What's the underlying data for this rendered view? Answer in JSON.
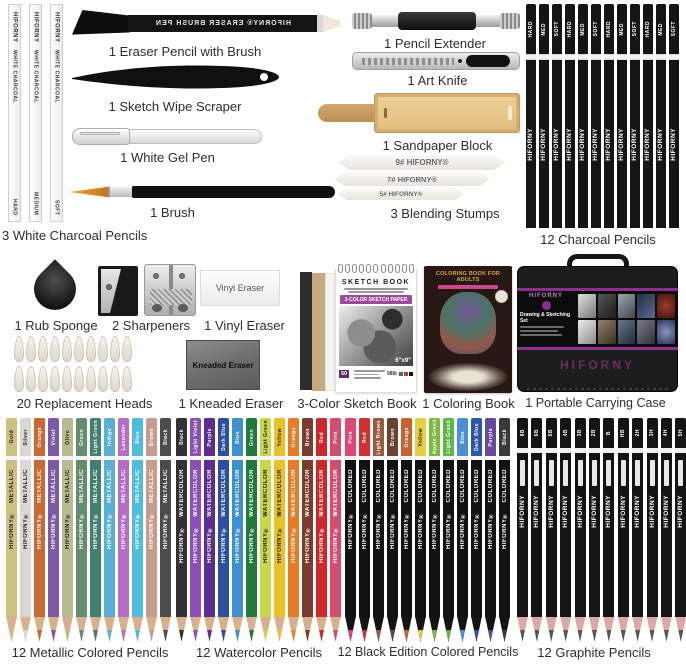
{
  "brand": "HIFORNY",
  "colors": {
    "accent_purple": "#8b2f8b",
    "banner_purple": "#9b4a9b",
    "wood": "#d8b08c",
    "graphite_wood": "#dba9a0",
    "graphite_lead": "#555555"
  },
  "labels": {
    "eraser_pencil": "1 Eraser Pencil with Brush",
    "scraper": "1 Sketch Wipe Scraper",
    "gel_pen": "1 White Gel Pen",
    "brush": "1 Brush",
    "white_charcoal": "3 White Charcoal Pencils",
    "pencil_extender": "1 Pencil Extender",
    "art_knife": "1 Art Knife",
    "sandpaper_block": "1 Sandpaper Block",
    "blending_stumps": "3 Blending Stumps",
    "charcoal": "12 Charcoal Pencils",
    "rub_sponge": "1 Rub Sponge",
    "sharpeners": "2 Sharpeners",
    "vinyl_eraser": "1 Vinyl Eraser",
    "replacement_heads": "20 Replacement Heads",
    "kneaded_eraser": "1 Kneaded Eraser",
    "sketch_book": "3-Color Sketch Book",
    "coloring_book": "1 Coloring Book",
    "carrying_case": "1 Portable Carrying Case",
    "metallic": "12 Metallic Colored Pencils",
    "watercolor": "12 Watercolor Pencils",
    "black_edition": "12 Black Edition Colored Pencils",
    "graphite": "12 Graphite Pencils"
  },
  "prints": {
    "eraser_pencil": "HIFORNY®  ERASER BRUSH PEN",
    "vinyl_eraser": "Vinyl Eraser",
    "kneaded_eraser": "Kneaded Eraser",
    "stumps": [
      "9# HIFORNY®",
      "7# HIFORNY®",
      "5# HIFORNY®"
    ]
  },
  "sketch_book": {
    "title": "SKETCH BOOK",
    "banner": "3-COLOR SKETCH PAPER",
    "size": "6\"x9\"",
    "sheets": "50",
    "weight": "98lb"
  },
  "coloring_book": {
    "title": "COLORING BOOK FOR ADULTS"
  },
  "carrying_case": {
    "brand_top": "HIFORNY",
    "panel_title": "Drawing & Sketching Set",
    "brand_bottom": "HIFORNY"
  },
  "replacement_heads_count": 20,
  "pencil_groups": [
    {
      "id": "white_charcoal",
      "style": "white",
      "brand_print": "HIFORNY",
      "word_print": "WHITE CHARCOAL",
      "pencils": [
        {
          "name": "HARD"
        },
        {
          "name": "MEDIUM"
        },
        {
          "name": "SOFT"
        }
      ]
    },
    {
      "id": "charcoal",
      "style": "charcoal",
      "brand_print": "HIFORNY",
      "pencils": [
        {
          "name": "HARD"
        },
        {
          "name": "MED"
        },
        {
          "name": "SOFT"
        },
        {
          "name": "HARD"
        },
        {
          "name": "MED"
        },
        {
          "name": "SOFT"
        },
        {
          "name": "HARD"
        },
        {
          "name": "MED"
        },
        {
          "name": "SOFT"
        },
        {
          "name": "HARD"
        },
        {
          "name": "MED"
        },
        {
          "name": "SOFT"
        }
      ]
    },
    {
      "id": "metallic",
      "style": "colored",
      "word_print": "METALLIC",
      "brand_print": "HIFORNY®",
      "pencils": [
        {
          "name": "Gold",
          "color": "#cdbf7d",
          "dark": true
        },
        {
          "name": "Silver",
          "color": "#d9d9d9",
          "dark": true
        },
        {
          "name": "Orange",
          "color": "#c96a33"
        },
        {
          "name": "Violet",
          "color": "#7d5aa8"
        },
        {
          "name": "Olive",
          "color": "#b6bc8b",
          "dark": true
        },
        {
          "name": "Green",
          "color": "#648d6b"
        },
        {
          "name": "Light Green",
          "color": "#41806c"
        },
        {
          "name": "Indigo",
          "color": "#58b0d4"
        },
        {
          "name": "Lavender",
          "color": "#b56dc8"
        },
        {
          "name": "Blue",
          "color": "#4dbddd"
        },
        {
          "name": "Brown",
          "color": "#c79c8b"
        },
        {
          "name": "Black",
          "color": "#4c4c4c"
        }
      ]
    },
    {
      "id": "watercolor",
      "style": "colored",
      "word_print": "WATERCOLOR",
      "brand_print": "HIFORNY®",
      "pencils": [
        {
          "name": "Black",
          "color": "#323232"
        },
        {
          "name": "Light Violet",
          "color": "#8a50b8"
        },
        {
          "name": "Purple",
          "color": "#5c2d91"
        },
        {
          "name": "Dark Blue",
          "color": "#2b4fa2"
        },
        {
          "name": "Blue",
          "color": "#3d8fd4"
        },
        {
          "name": "Green",
          "color": "#1f7a3c"
        },
        {
          "name": "Light Green",
          "color": "#c6d84c",
          "dark": true
        },
        {
          "name": "Yellow",
          "color": "#eac226",
          "dark": true
        },
        {
          "name": "Orange",
          "color": "#e87c24"
        },
        {
          "name": "Brown",
          "color": "#7c3b2c"
        },
        {
          "name": "Red",
          "color": "#cd2727"
        },
        {
          "name": "Pink",
          "color": "#d14e6e"
        }
      ]
    },
    {
      "id": "black_edition",
      "style": "blackbody",
      "word_print": "COLORED",
      "brand_print": "HIFORNY®",
      "pencils": [
        {
          "name": "Pink",
          "color": "#e04578"
        },
        {
          "name": "Red",
          "color": "#cf3030"
        },
        {
          "name": "Light Brown",
          "color": "#9a5a40"
        },
        {
          "name": "Brown",
          "color": "#6b4131"
        },
        {
          "name": "Orange",
          "color": "#c66231"
        },
        {
          "name": "Yellow",
          "color": "#e6cf3e",
          "dark": true
        },
        {
          "name": "Apple Green",
          "color": "#7cb93f"
        },
        {
          "name": "Light Green",
          "color": "#5eb748"
        },
        {
          "name": "Blue",
          "color": "#4a90d8"
        },
        {
          "name": "Dark Blue",
          "color": "#2a57ae"
        },
        {
          "name": "Purple",
          "color": "#68489e"
        },
        {
          "name": "Black",
          "color": "#3a3a3a"
        }
      ]
    },
    {
      "id": "graphite",
      "style": "graphite",
      "brand_print": "HIFORNY",
      "pencils": [
        {
          "name": "8B"
        },
        {
          "name": "6B"
        },
        {
          "name": "5B"
        },
        {
          "name": "4B"
        },
        {
          "name": "3B"
        },
        {
          "name": "2B"
        },
        {
          "name": "B"
        },
        {
          "name": "HB"
        },
        {
          "name": "2H"
        },
        {
          "name": "3H"
        },
        {
          "name": "4H"
        },
        {
          "name": "5H"
        }
      ]
    }
  ]
}
